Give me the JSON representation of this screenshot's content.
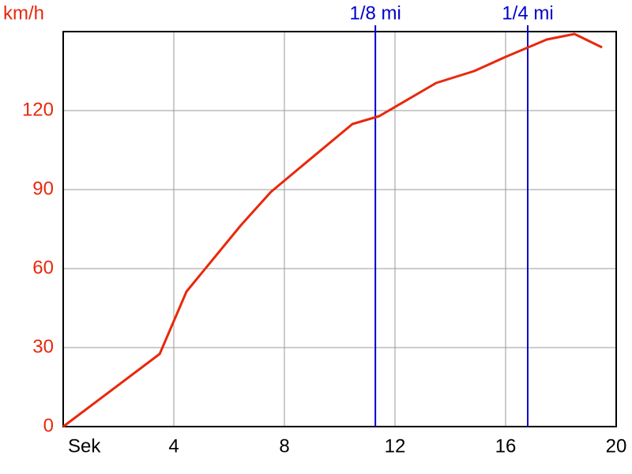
{
  "chart_data": {
    "type": "line",
    "y_label": "km/h",
    "x_label": "Sek",
    "x": [
      0,
      3.49,
      4.46,
      6.43,
      7.51,
      8.57,
      10.46,
      11.43,
      13.49,
      14.86,
      16,
      17.49,
      18.49,
      19.49
    ],
    "series": [
      {
        "color": "#e8280c",
        "values": [
          0,
          27.6,
          51.3,
          76.5,
          89.1,
          98.4,
          114.9,
          117.9,
          130.5,
          135,
          140.4,
          147,
          149.1,
          144
        ]
      }
    ],
    "xlim": [
      0,
      20
    ],
    "xticks": [
      4,
      8,
      12,
      16,
      20
    ],
    "ylim": [
      0,
      150
    ],
    "yticks": [
      0,
      30,
      60,
      90,
      120
    ],
    "grid": true,
    "markers": [
      {
        "label": "1/8 mi",
        "x": 11.29,
        "color": "#0000cc"
      },
      {
        "label": "1/4 mi",
        "x": 16.8,
        "color": "#0000cc"
      }
    ]
  }
}
